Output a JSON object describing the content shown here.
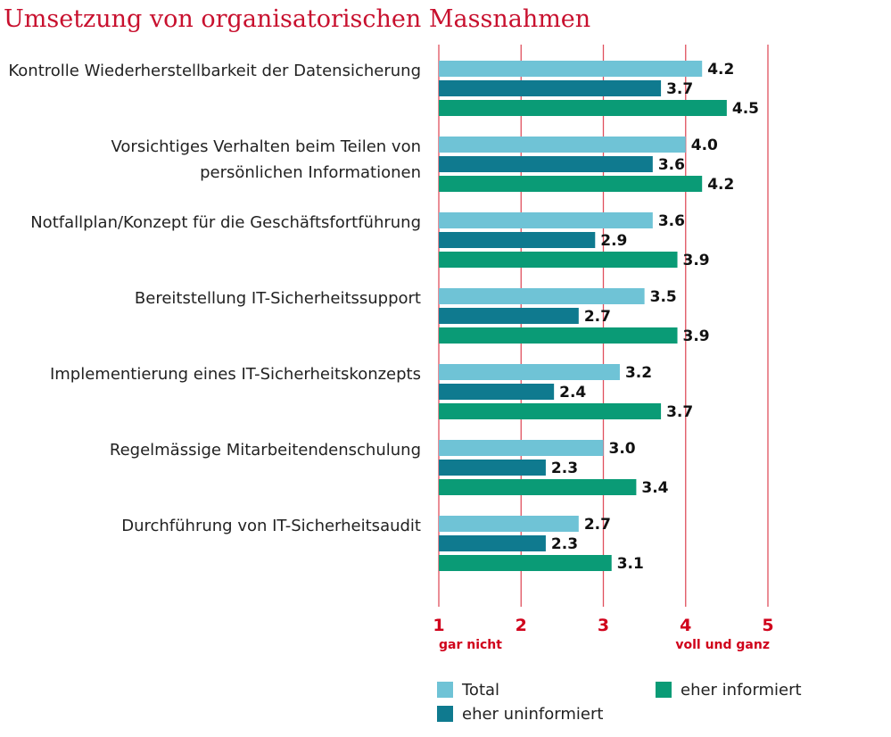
{
  "chart_data": {
    "type": "hbar",
    "title": "Umsetzung von organisatorischen Massnahmen",
    "categories": [
      "Kontrolle Wiederherstellbarkeit der Datensicherung",
      "Vorsichtiges Verhalten beim Teilen von\npersönlichen Informationen",
      "Notfallplan/Konzept für die Geschäftsfortführung",
      "Bereitstellung IT-Sicherheitssupport",
      "Implementierung eines IT-Sicherheitskonzepts",
      "Regelmässige Mitarbeitendenschulung",
      "Durchführung von IT-Sicherheitsaudit"
    ],
    "series": [
      {
        "name": "Total",
        "color": "#6fc3d6",
        "values": [
          4.2,
          4.0,
          3.6,
          3.5,
          3.2,
          3.0,
          2.7
        ],
        "value_labels": [
          "4.2",
          "4.0",
          "3.6",
          "3.5",
          "3.2",
          "3.0",
          "2.7"
        ]
      },
      {
        "name": "eher uninformiert",
        "color": "#0f7a8f",
        "values": [
          3.7,
          3.6,
          2.9,
          2.7,
          2.4,
          2.3,
          2.3
        ],
        "value_labels": [
          "3.7",
          "3.6",
          "2.9",
          "2.7",
          "2.4",
          "2.3",
          "2.3"
        ]
      },
      {
        "name": "eher informiert",
        "color": "#0a9b76",
        "values": [
          4.5,
          4.2,
          3.9,
          3.9,
          3.7,
          3.4,
          3.1
        ],
        "value_labels": [
          "4.5",
          "4.2",
          "3.9",
          "3.9",
          "3.7",
          "3.4",
          "3.1"
        ]
      }
    ],
    "xlim": [
      1,
      5
    ],
    "xticks": [
      1,
      2,
      3,
      4,
      5
    ],
    "grid": true,
    "xlabel_low": "gar nicht",
    "xlabel_high": "voll und ganz"
  }
}
